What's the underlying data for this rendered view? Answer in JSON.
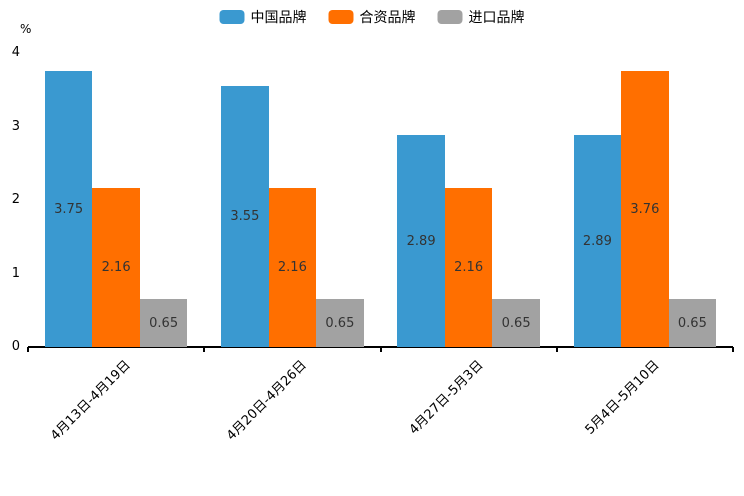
{
  "chart_data": {
    "type": "bar",
    "categories": [
      "4月13日-4月19日",
      "4月20日-4月26日",
      "4月27日-5月3日",
      "5月4日-5月10日"
    ],
    "series": [
      {
        "name": "中国品牌",
        "color": "#3a99d0",
        "values": [
          3.75,
          3.55,
          2.89,
          2.89
        ]
      },
      {
        "name": "合资品牌",
        "color": "#ff6f00",
        "values": [
          2.16,
          2.16,
          2.16,
          3.76
        ]
      },
      {
        "name": "进口品牌",
        "color": "#a2a2a2",
        "values": [
          0.65,
          0.65,
          0.65,
          0.65
        ]
      }
    ],
    "title": "",
    "xlabel": "",
    "ylabel": "%",
    "ylim": [
      0,
      4
    ],
    "yticks": [
      0,
      1,
      2,
      3,
      4
    ],
    "legend_position": "top",
    "grid": false,
    "bar_labels": true,
    "bar_label_color": "#333333",
    "axis_color": "#000000"
  }
}
